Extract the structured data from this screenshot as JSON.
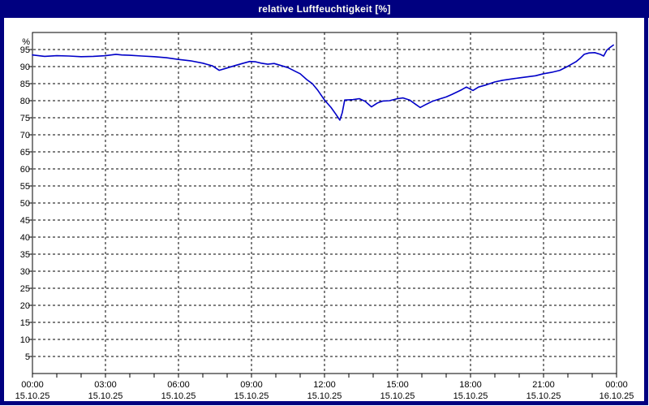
{
  "window": {
    "title": "relative Luftfeuchtigkeit [%]",
    "titlebar_color": "#000080",
    "title_text_color": "#FFFFF2",
    "border_color": "#000080",
    "background": "#FFFFFF"
  },
  "chart_data": {
    "type": "line",
    "title": "relative Luftfeuchtigkeit [%]",
    "unit_label": "%",
    "xlabel": "",
    "ylabel": "%",
    "xlim_hours": [
      0,
      24
    ],
    "ylim": [
      0,
      100
    ],
    "ytick_step": 5,
    "ytick_label_min": 5,
    "ytick_label_max": 95,
    "x_minor_tick_every_hours": 1,
    "x_gridline_every_hours": 3,
    "grid_style": "dashed",
    "grid_on": true,
    "legend_position": "none",
    "grid_color": "#000000",
    "axis_color": "#000000",
    "label_color": "#000000",
    "line_color": "#0000C8",
    "x_labels": [
      {
        "hour": 0,
        "time": "00:00",
        "date": "15.10.25"
      },
      {
        "hour": 3,
        "time": "03:00",
        "date": "15.10.25"
      },
      {
        "hour": 6,
        "time": "06:00",
        "date": "15.10.25"
      },
      {
        "hour": 9,
        "time": "09:00",
        "date": "15.10.25"
      },
      {
        "hour": 12,
        "time": "12:00",
        "date": "15.10.25"
      },
      {
        "hour": 15,
        "time": "15:00",
        "date": "15.10.25"
      },
      {
        "hour": 18,
        "time": "18:00",
        "date": "15.10.25"
      },
      {
        "hour": 21,
        "time": "21:00",
        "date": "15.10.25"
      },
      {
        "hour": 24,
        "time": "00:00",
        "date": "16.10.25"
      }
    ],
    "series": [
      {
        "name": "relative Luftfeuchtigkeit [%]",
        "points_hour_value": [
          [
            0,
            93.4
          ],
          [
            0.5,
            93.0
          ],
          [
            1,
            93.2
          ],
          [
            1.5,
            93.1
          ],
          [
            2,
            92.9
          ],
          [
            2.5,
            93.0
          ],
          [
            3,
            93.2
          ],
          [
            3.43,
            93.6
          ],
          [
            3.67,
            93.4
          ],
          [
            4,
            93.3
          ],
          [
            4.5,
            93.1
          ],
          [
            5,
            92.9
          ],
          [
            5.5,
            92.6
          ],
          [
            6,
            92.1
          ],
          [
            6.5,
            91.7
          ],
          [
            7,
            91.0
          ],
          [
            7.4,
            90.2
          ],
          [
            7.67,
            88.9
          ],
          [
            8,
            89.6
          ],
          [
            8.33,
            90.3
          ],
          [
            8.67,
            91.0
          ],
          [
            8.93,
            91.5
          ],
          [
            9.17,
            91.4
          ],
          [
            9.4,
            91.0
          ],
          [
            9.67,
            90.7
          ],
          [
            9.93,
            90.9
          ],
          [
            10.17,
            90.4
          ],
          [
            10.5,
            89.7
          ],
          [
            10.83,
            88.5
          ],
          [
            11,
            87.9
          ],
          [
            11.27,
            86.2
          ],
          [
            11.5,
            85.0
          ],
          [
            11.73,
            83.0
          ],
          [
            12,
            80.2
          ],
          [
            12.27,
            78.0
          ],
          [
            12.47,
            76.0
          ],
          [
            12.63,
            74.3
          ],
          [
            12.73,
            76.5
          ],
          [
            12.83,
            80.2
          ],
          [
            13.17,
            80.3
          ],
          [
            13.43,
            80.6
          ],
          [
            13.67,
            79.8
          ],
          [
            13.93,
            78.2
          ],
          [
            14.17,
            79.3
          ],
          [
            14.4,
            79.9
          ],
          [
            14.67,
            80.0
          ],
          [
            15,
            80.6
          ],
          [
            15.23,
            80.8
          ],
          [
            15.5,
            80.2
          ],
          [
            15.73,
            79.0
          ],
          [
            15.93,
            78.0
          ],
          [
            16.17,
            78.9
          ],
          [
            16.43,
            79.8
          ],
          [
            16.73,
            80.5
          ],
          [
            17,
            81.1
          ],
          [
            17.23,
            81.8
          ],
          [
            17.43,
            82.5
          ],
          [
            17.63,
            83.2
          ],
          [
            17.83,
            84.0
          ],
          [
            18.1,
            83.0
          ],
          [
            18.33,
            84.0
          ],
          [
            18.67,
            84.7
          ],
          [
            19,
            85.5
          ],
          [
            19.33,
            86.0
          ],
          [
            20,
            86.7
          ],
          [
            20.67,
            87.3
          ],
          [
            21,
            87.9
          ],
          [
            21.33,
            88.3
          ],
          [
            21.67,
            88.9
          ],
          [
            22,
            90.1
          ],
          [
            22.33,
            91.4
          ],
          [
            22.5,
            92.4
          ],
          [
            22.67,
            93.6
          ],
          [
            22.87,
            94.0
          ],
          [
            23.1,
            94.1
          ],
          [
            23.33,
            93.6
          ],
          [
            23.47,
            93.1
          ],
          [
            23.6,
            94.8
          ],
          [
            23.73,
            95.6
          ],
          [
            23.87,
            96.3
          ]
        ]
      }
    ]
  }
}
